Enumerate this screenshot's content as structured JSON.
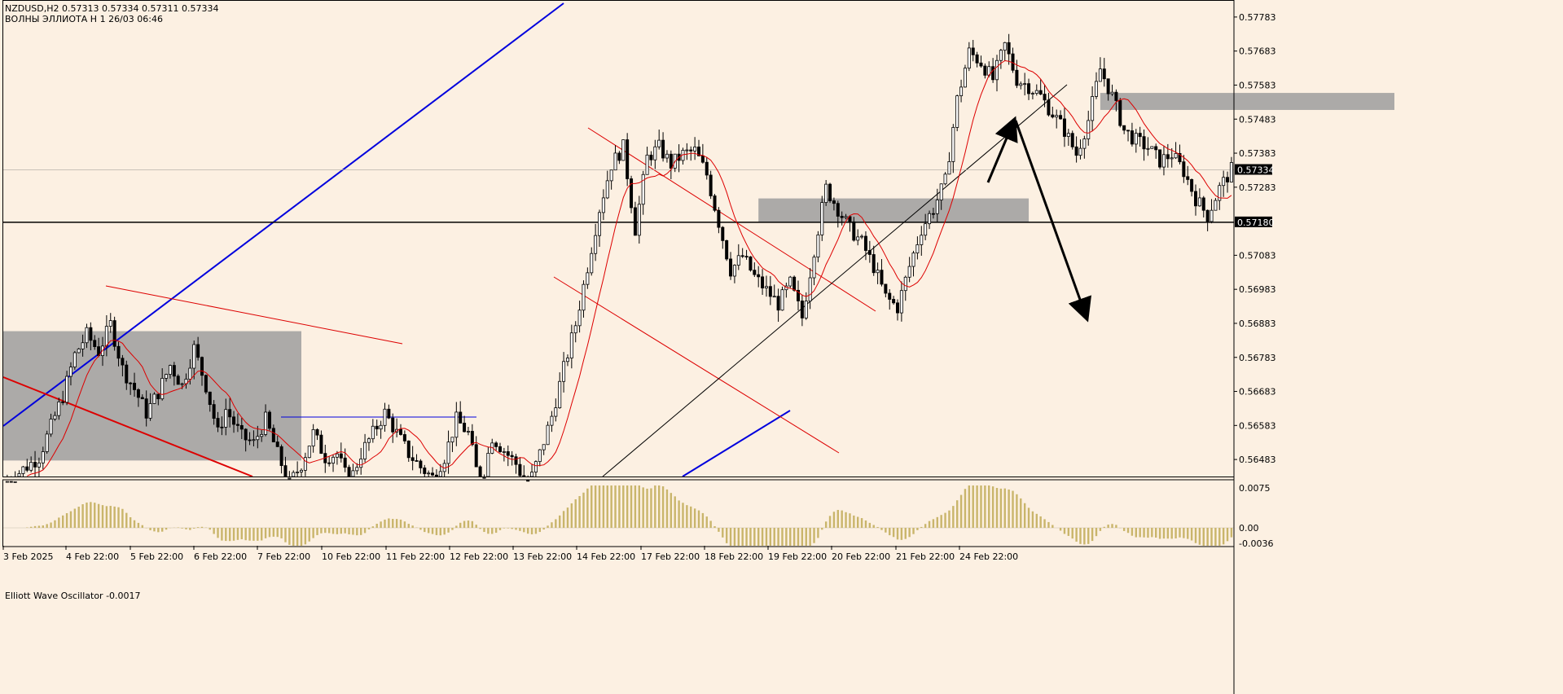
{
  "header": {
    "symbol_line": "NZDUSD,H2  0.57313 0.57334 0.57311 0.57334",
    "indicator_line": "ВОЛНЫ ЭЛЛИОТА Н 1 26/03 06:46"
  },
  "oscillator": {
    "label": "Elliott Wave Oscillator -0.0017",
    "axis": [
      "0.0075",
      "0.00",
      "-0.0036"
    ]
  },
  "colors": {
    "background": "#fcf0e2",
    "grid": "#000000",
    "zone": "#9e9e9e",
    "blue_line": "#0000dd",
    "red_line": "#dd0000",
    "candle_bull": "#ffffff",
    "candle_bear": "#000000",
    "oscillator_bar": "#c9b56b"
  },
  "chart_data": {
    "type": "candlestick",
    "symbol": "NZDUSD",
    "timeframe": "H2",
    "ohlc_current": {
      "open": 0.57313,
      "high": 0.57334,
      "low": 0.57311,
      "close": 0.57334
    },
    "current_price": "0.57334",
    "level_price": "0.57180",
    "ylim": [
      0.56433,
      0.57833
    ],
    "y_ticks": [
      "0.57783",
      "0.57683",
      "0.57583",
      "0.57483",
      "0.57383",
      "0.57283",
      "0.57083",
      "0.56983",
      "0.56883",
      "0.56783",
      "0.56683",
      "0.56583",
      "0.56483"
    ],
    "x_ticks": [
      "3 Feb 2025",
      "4 Feb 22:00",
      "5 Feb 22:00",
      "6 Feb 22:00",
      "7 Feb 22:00",
      "10 Feb 22:00",
      "11 Feb 22:00",
      "12 Feb 22:00",
      "13 Feb 22:00",
      "14 Feb 22:00",
      "17 Feb 22:00",
      "18 Feb 22:00",
      "19 Feb 22:00",
      "20 Feb 22:00",
      "21 Feb 22:00",
      "24 Feb 22:00"
    ],
    "close_path": [
      [
        0,
        0.5641
      ],
      [
        9,
        0.5649
      ],
      [
        12,
        0.5658
      ],
      [
        15,
        0.5667
      ],
      [
        18,
        0.5679
      ],
      [
        21,
        0.5685
      ],
      [
        24,
        0.568
      ],
      [
        27,
        0.5688
      ],
      [
        30,
        0.5675
      ],
      [
        33,
        0.5669
      ],
      [
        36,
        0.5662
      ],
      [
        39,
        0.5668
      ],
      [
        42,
        0.5676
      ],
      [
        45,
        0.567
      ],
      [
        48,
        0.5681
      ],
      [
        51,
        0.567
      ],
      [
        54,
        0.5656
      ],
      [
        56,
        0.5663
      ],
      [
        60,
        0.5655
      ],
      [
        63,
        0.5653
      ],
      [
        66,
        0.566
      ],
      [
        69,
        0.565
      ],
      [
        72,
        0.5641
      ],
      [
        75,
        0.5647
      ],
      [
        78,
        0.5656
      ],
      [
        81,
        0.5649
      ],
      [
        84,
        0.565
      ],
      [
        87,
        0.5641
      ],
      [
        90,
        0.565
      ],
      [
        93,
        0.5656
      ],
      [
        96,
        0.5662
      ],
      [
        99,
        0.5656
      ],
      [
        102,
        0.565
      ],
      [
        105,
        0.5646
      ],
      [
        108,
        0.5643
      ],
      [
        111,
        0.5649
      ],
      [
        114,
        0.566
      ],
      [
        117,
        0.5656
      ],
      [
        120,
        0.564
      ],
      [
        123,
        0.5655
      ],
      [
        126,
        0.5651
      ],
      [
        129,
        0.5647
      ],
      [
        132,
        0.564
      ],
      [
        135,
        0.565
      ],
      [
        138,
        0.5661
      ],
      [
        141,
        0.5675
      ],
      [
        144,
        0.5688
      ],
      [
        147,
        0.5705
      ],
      [
        150,
        0.5722
      ],
      [
        153,
        0.5735
      ],
      [
        156,
        0.574
      ],
      [
        159,
        0.5716
      ],
      [
        162,
        0.5737
      ],
      [
        165,
        0.574
      ],
      [
        168,
        0.5735
      ],
      [
        171,
        0.5738
      ],
      [
        174,
        0.5739
      ],
      [
        177,
        0.5732
      ],
      [
        180,
        0.5718
      ],
      [
        183,
        0.5704
      ],
      [
        186,
        0.5708
      ],
      [
        189,
        0.5702
      ],
      [
        192,
        0.5698
      ],
      [
        195,
        0.5694
      ],
      [
        198,
        0.57
      ],
      [
        201,
        0.569
      ],
      [
        204,
        0.571
      ],
      [
        207,
        0.5728
      ],
      [
        210,
        0.5722
      ],
      [
        213,
        0.5716
      ],
      [
        216,
        0.5712
      ],
      [
        219,
        0.5705
      ],
      [
        222,
        0.5696
      ],
      [
        225,
        0.5693
      ],
      [
        228,
        0.5705
      ],
      [
        231,
        0.5716
      ],
      [
        234,
        0.5722
      ],
      [
        237,
        0.573
      ],
      [
        240,
        0.5754
      ],
      [
        243,
        0.5768
      ],
      [
        246,
        0.5765
      ],
      [
        249,
        0.576
      ],
      [
        252,
        0.577
      ],
      [
        255,
        0.576
      ],
      [
        258,
        0.5758
      ],
      [
        261,
        0.5755
      ],
      [
        264,
        0.575
      ],
      [
        267,
        0.5745
      ],
      [
        270,
        0.5738
      ],
      [
        273,
        0.5748
      ],
      [
        276,
        0.5763
      ],
      [
        279,
        0.5755
      ],
      [
        282,
        0.5745
      ],
      [
        285,
        0.5742
      ],
      [
        288,
        0.574
      ],
      [
        291,
        0.5736
      ],
      [
        294,
        0.5738
      ],
      [
        297,
        0.5733
      ],
      [
        300,
        0.5725
      ],
      [
        303,
        0.572
      ],
      [
        306,
        0.5728
      ],
      [
        309,
        0.57334
      ]
    ],
    "horizontal_level": 0.5718,
    "zones": [
      {
        "from_bar": 0,
        "to_bar": 75,
        "top": 0.5686,
        "bottom": 0.5648
      },
      {
        "from_bar": 190,
        "to_bar": 258,
        "top": 0.5725,
        "bottom": 0.5718
      },
      {
        "from_bar": 276,
        "to_bar": 350,
        "top": 0.5756,
        "bottom": 0.5751
      }
    ],
    "projection": {
      "points": [
        [
          0.5727,
          "start"
        ],
        [
          0.5751,
          "peak"
        ],
        [
          0.5697,
          "target"
        ]
      ]
    },
    "grid": false,
    "legend": "none"
  }
}
